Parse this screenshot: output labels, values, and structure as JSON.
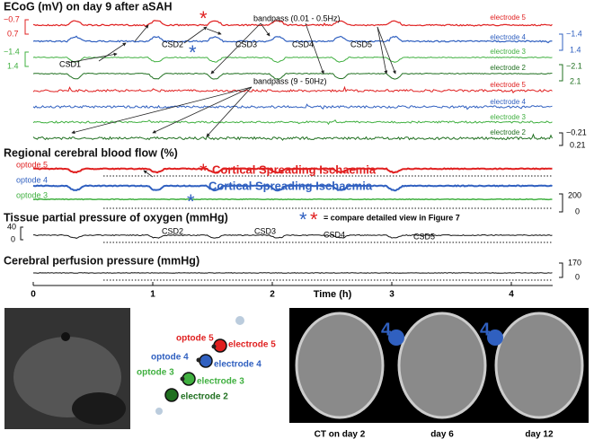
{
  "ecog": {
    "title": "ECoG (mV) on day 9 after aSAH",
    "bandpass_low": "bandpass (0.01 - 0.5Hz)",
    "bandpass_high": "bandpass (9 - 50Hz)",
    "electrodes": [
      "electrode 5",
      "electrode 4",
      "electrode 3",
      "electrode 2"
    ],
    "csd": [
      "CSD1",
      "CSD2",
      "CSD3",
      "CSD4",
      "CSD5"
    ],
    "scale_left": [
      "−0.7",
      "0.7",
      "−1.4",
      "1.4"
    ],
    "scale_right": [
      "−1.4",
      "1.4",
      "−2.1",
      "2.1",
      "−0.21",
      "0.21"
    ],
    "asterisk_red": "*",
    "asterisk_blue": "*"
  },
  "cbf": {
    "title": "Regional cerebral blood flow (%)",
    "optodes": [
      "optode 5",
      "optode 4",
      "optode 3"
    ],
    "csi_red": "Cortical Spreading Ischaemia",
    "csi_blue": "Cortical Spreading Ischaemia",
    "scale": [
      "200",
      "0"
    ],
    "asterisk_red": "*",
    "asterisk_blue": "*"
  },
  "legend": {
    "asterisk_blue": "*",
    "asterisk_red": "*",
    "text": "= compare detailed view in Figure 7"
  },
  "pto2": {
    "title": "Tissue partial pressure of oxygen (mmHg)",
    "scale": [
      "40",
      "0"
    ],
    "csd": [
      "CSD2",
      "CSD3",
      "CSD4",
      "CSD5"
    ]
  },
  "cpp": {
    "title": "Cerebral perfusion pressure (mmHg)",
    "scale": [
      "170",
      "0"
    ]
  },
  "time_axis": {
    "label": "Time (h)",
    "ticks": [
      0,
      1,
      2,
      3,
      4
    ]
  },
  "probe_photo": {
    "labels": [
      "optode 5",
      "electrode 5",
      "optode 4",
      "electrode 4",
      "optode 3",
      "electrode 3",
      "electrode 2"
    ]
  },
  "ct": {
    "markers": [
      "4",
      "4"
    ],
    "captions": [
      "CT on day 2",
      "day 6",
      "day 12"
    ]
  }
}
